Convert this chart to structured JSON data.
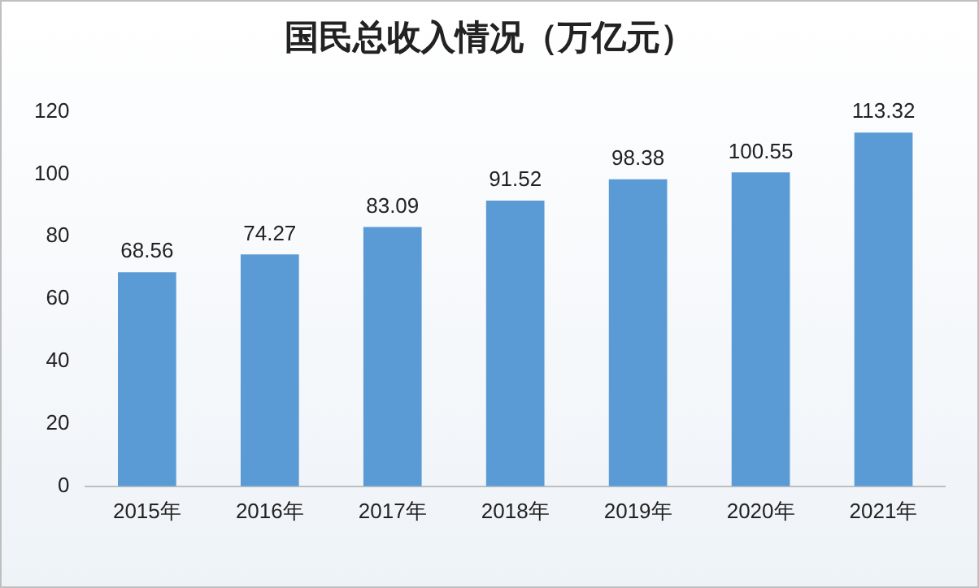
{
  "chart_data": {
    "type": "bar",
    "title": "国民总收入情况（万亿元）",
    "categories": [
      "2015年",
      "2016年",
      "2017年",
      "2018年",
      "2019年",
      "2020年",
      "2021年"
    ],
    "values": [
      68.56,
      74.27,
      83.09,
      91.52,
      98.38,
      100.55,
      113.32
    ],
    "color": "#5b9bd5",
    "ylim": [
      0,
      120
    ],
    "yticks": [
      0,
      20,
      40,
      60,
      80,
      100,
      120
    ],
    "grid": false,
    "data_labels": true,
    "legend": false
  }
}
